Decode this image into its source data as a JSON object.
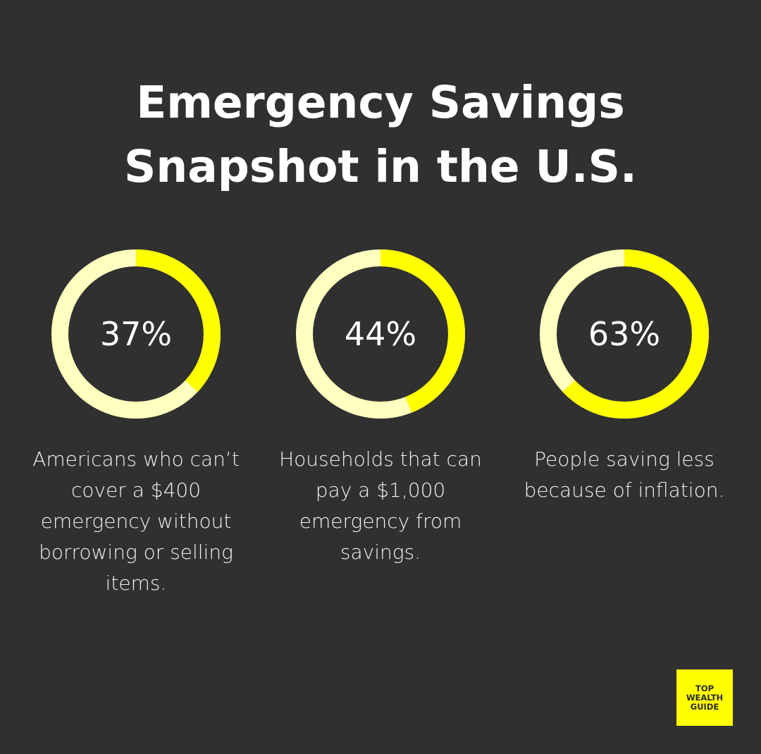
{
  "title_line1": "Emergency Savings",
  "title_line2": "Snapshot in the U.S.",
  "colors": {
    "background": "#303030",
    "filled": "#ffff00",
    "track": "#ffffbf",
    "text": "#ffffff"
  },
  "stats": [
    {
      "value": 37,
      "label": "37%",
      "description": "Americans who can’t cover a $400 emergency without borrowing or selling items."
    },
    {
      "value": 44,
      "label": "44%",
      "description": "Households that can pay a $1,000 emergency from savings."
    },
    {
      "value": 63,
      "label": "63%",
      "description": "People saving less because of inflation."
    }
  ],
  "logo": {
    "line1": "TOP",
    "line2": "WEALTH",
    "line3": "GUIDE"
  },
  "chart_data": {
    "type": "pie",
    "title": "Emergency Savings Snapshot in the U.S.",
    "categories": [
      "Americans who can’t cover a $400 emergency without borrowing or selling items.",
      "Households that can pay a $1,000 emergency from savings.",
      "People saving less because of inflation."
    ],
    "values": [
      37,
      44,
      63
    ],
    "unit": "%",
    "style": "donut progress rings"
  }
}
